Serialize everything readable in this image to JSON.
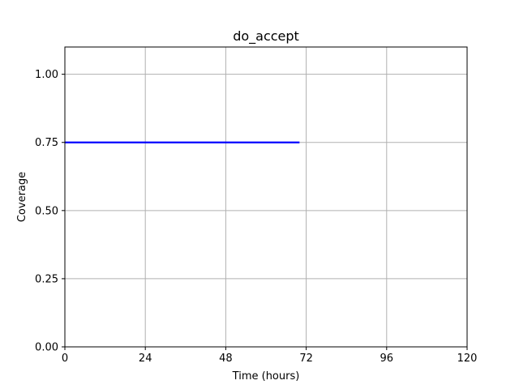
{
  "chart_data": {
    "type": "line",
    "title": "do_accept",
    "xlabel": "Time (hours)",
    "ylabel": "Coverage",
    "xlim": [
      0,
      120
    ],
    "ylim": [
      0,
      1.1
    ],
    "xticks": [
      0,
      24,
      48,
      72,
      96,
      120
    ],
    "xtick_labels": [
      "0",
      "24",
      "48",
      "72",
      "96",
      "120"
    ],
    "yticks": [
      0,
      0.25,
      0.5,
      0.75,
      1.0
    ],
    "ytick_labels": [
      "0.00",
      "0.25",
      "0.50",
      "0.75",
      "1.00"
    ],
    "grid": true,
    "series": [
      {
        "color": "#0000ff",
        "x": [
          0,
          70
        ],
        "y": [
          0.75,
          0.75
        ]
      }
    ]
  }
}
